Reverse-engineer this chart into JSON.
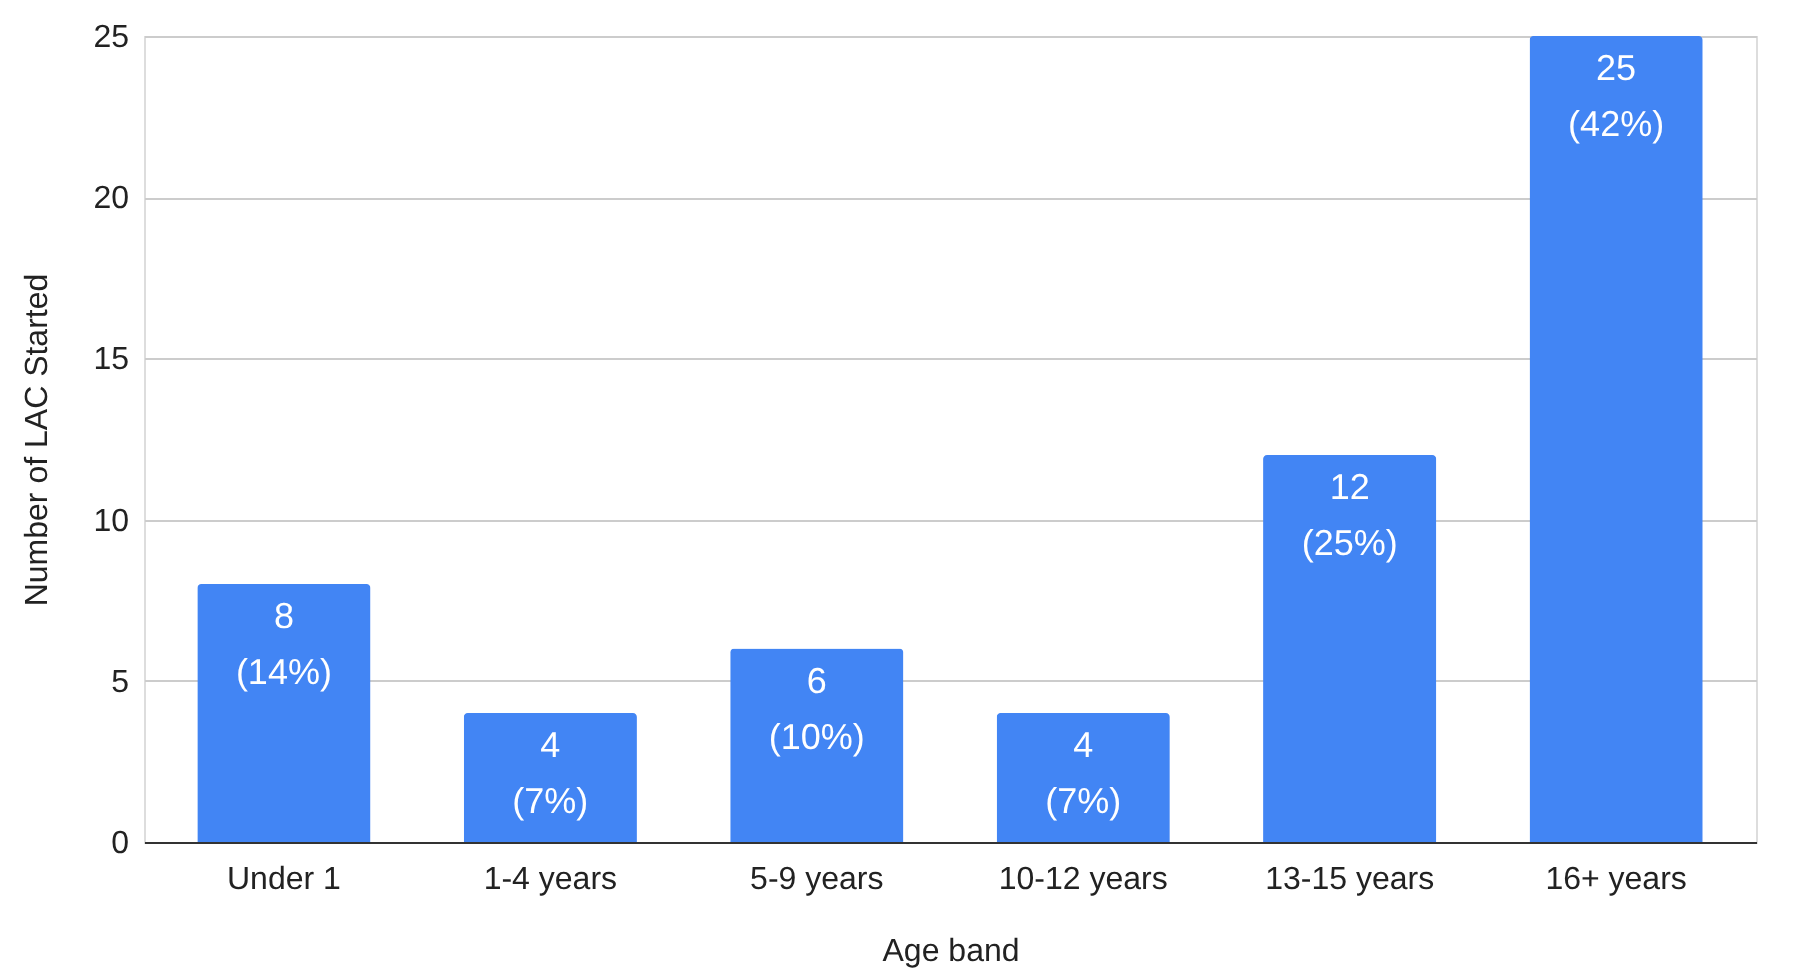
{
  "chart_data": {
    "type": "bar",
    "xlabel": "Age band",
    "ylabel": "Number of LAC Started",
    "categories": [
      "Under 1",
      "1-4 years",
      "5-9 years",
      "10-12 years",
      "13-15 years",
      "16+ years"
    ],
    "values": [
      8,
      4,
      6,
      4,
      12,
      25
    ],
    "value_labels": [
      "8\n(14%)",
      "4\n(7%)",
      "6\n(10%)",
      "4\n(7%)",
      "12\n(25%)",
      "25\n(42%)"
    ],
    "color": "#4285f4",
    "ylim": [
      0,
      25
    ],
    "yticks": [
      0,
      5,
      10,
      15,
      20,
      25
    ],
    "grid": "y"
  }
}
